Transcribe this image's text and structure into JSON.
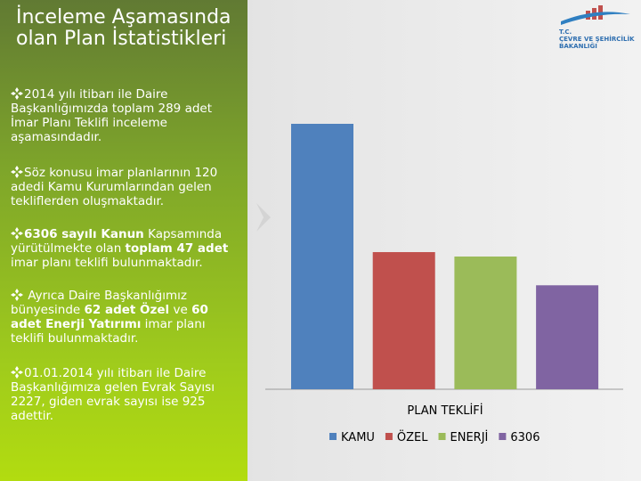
{
  "title": "İnceleme Aşamasında olan Plan İstatistikleri",
  "logo": {
    "line1": "T.C.",
    "line2": "ÇEVRE VE ŞEHİRCİLİK",
    "line3": "BAKANLIĞI"
  },
  "bullets": [
    [
      "2014 yılı itibarı ile Daire Başkanlığımızda toplam 289 adet İmar Planı Teklifi inceleme aşamasındadır."
    ],
    [
      "Söz konusu imar planlarının 120 adedi Kamu Kurumlarından gelen tekliflerden oluşmaktadır."
    ],
    [
      "6306 sayılı Kanun",
      " Kapsamında yürütülmekte olan ",
      "toplam 47 adet",
      " imar planı teklifi bulunmaktadır."
    ],
    [
      " Ayrıca Daire Başkanlığımız bünyesinde ",
      "62 adet Özel",
      " ve ",
      "60 adet Enerji Yatırımı",
      " imar planı teklifi bulunmaktadır."
    ],
    [
      "01.01.2014 yılı itibarı ile Daire Başkanlığımıza gelen Evrak Sayısı 2227, giden evrak sayısı ise 925 adettir."
    ]
  ],
  "chart_data": {
    "type": "bar",
    "categories": [
      "PLAN TEKLİFİ"
    ],
    "series": [
      {
        "name": "KAMU",
        "color": "#4f81bd",
        "values": [
          120
        ]
      },
      {
        "name": "ÖZEL",
        "color": "#c0504d",
        "values": [
          62
        ]
      },
      {
        "name": "ENERJİ",
        "color": "#9bbb59",
        "values": [
          60
        ]
      },
      {
        "name": "6306",
        "color": "#8064a2",
        "values": [
          47
        ]
      }
    ],
    "ylim": [
      0,
      120
    ],
    "legend": "bottom"
  }
}
